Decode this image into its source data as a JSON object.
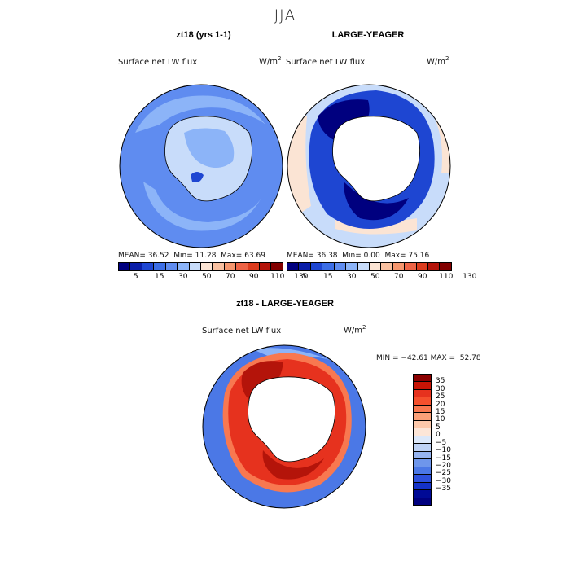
{
  "main_title": "JJA",
  "panels": {
    "left": {
      "title": "zt18 (yrs 1-1)",
      "variable": "Surface net LW flux",
      "units_base": "W/m",
      "units_exp": "2",
      "stats": {
        "mean_label": "MEAN=",
        "mean": "36.52",
        "min_label": "Min=",
        "min": "11.28",
        "max_label": "Max=",
        "max": "63.69"
      }
    },
    "right": {
      "title": "LARGE-YEAGER",
      "variable": "Surface net LW flux",
      "units_base": "W/m",
      "units_exp": "2",
      "stats": {
        "mean_label": "MEAN=",
        "mean": "36.38",
        "min_label": "Min=",
        "min": "0.00",
        "max_label": "Max=",
        "max": "75.16"
      }
    },
    "diff": {
      "title": "zt18 - LARGE-YEAGER",
      "variable": "Surface net LW flux",
      "units_base": "W/m",
      "units_exp": "2",
      "stats_text": "MIN = −42.61 MAX =  52.78"
    }
  },
  "colorbar_abs": {
    "colors": [
      "#00007f",
      "#0a1ea8",
      "#1e46d2",
      "#3c6ee6",
      "#5f8cf0",
      "#8cb4f8",
      "#c8dcfa",
      "#fbe4d4",
      "#f8c0a0",
      "#f5966e",
      "#ee6446",
      "#dc3c1e",
      "#b4140a",
      "#820000"
    ],
    "labels": [
      "5",
      "15",
      "30",
      "50",
      "70",
      "90",
      "110",
      "130"
    ]
  },
  "colorbar_diff": {
    "colors": [
      "#8b0000",
      "#c81405",
      "#e6321e",
      "#f5502d",
      "#f87850",
      "#fba078",
      "#fdc8aa",
      "#fde6d8",
      "#dce8fa",
      "#bed2f5",
      "#96b4f0",
      "#6e96eb",
      "#4b78e6",
      "#2d50dc",
      "#1432c8",
      "#000a96",
      "#00007f"
    ],
    "labels": [
      "35",
      "30",
      "25",
      "20",
      "15",
      "10",
      "5",
      "0",
      "−5",
      "−10",
      "−15",
      "−20",
      "−25",
      "−30",
      "−35"
    ]
  },
  "palette": {
    "left_ocean": "#5f8cf0",
    "left_ocean_light": "#8cb4f8",
    "left_ocean_pale": "#c8dcfa",
    "right_ring_dark": "#00007f",
    "right_ring": "#1e46d2",
    "right_outer": "#c8dcfa",
    "right_warm": "#fbe4d4",
    "diff_ocean": "#4b78e6",
    "diff_ocean_light": "#8cb4f8",
    "diff_ring_dark": "#b4140a",
    "diff_ring": "#e6321e",
    "diff_ring_light": "#f87850",
    "land": "#ffffff"
  }
}
